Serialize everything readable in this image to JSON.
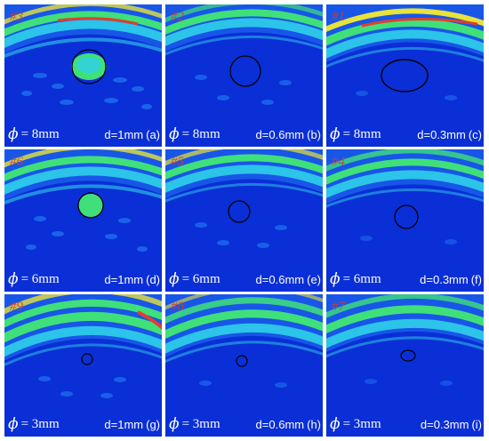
{
  "panels": [
    {
      "num": "#3",
      "phi": "ϕ",
      "diameter": "= 8mm",
      "depth": "d=1mm",
      "label": "(a)"
    },
    {
      "num": "#2",
      "phi": "ϕ",
      "diameter": "= 8mm",
      "depth": "d=0.6mm",
      "label": "(b)"
    },
    {
      "num": "#1",
      "phi": "ϕ",
      "diameter": "= 8mm",
      "depth": "d=0.3mm",
      "label": "(c)"
    },
    {
      "num": "#6",
      "phi": "ϕ",
      "diameter": "= 6mm",
      "depth": "d=1mm",
      "label": "(d)"
    },
    {
      "num": "#5",
      "phi": "ϕ",
      "diameter": "= 6mm",
      "depth": "d=0.6mm",
      "label": "(e)"
    },
    {
      "num": "#4",
      "phi": "ϕ",
      "diameter": "= 6mm",
      "depth": "d=0.3mm",
      "label": "(f)"
    },
    {
      "num": "#9",
      "phi": "ϕ",
      "diameter": "= 3mm",
      "depth": "d=1mm",
      "label": "(g)"
    },
    {
      "num": "#8",
      "phi": "ϕ",
      "diameter": "= 3mm",
      "depth": "d=0.6mm",
      "label": "(h)"
    },
    {
      "num": "#7",
      "phi": "ϕ",
      "diameter": "= 3mm",
      "depth": "d=0.3mm",
      "label": "(i)"
    }
  ],
  "colors": {
    "background_blue": "#0a2fd6",
    "band_cyan": "#2fd0e8",
    "band_green": "#3fe07a",
    "band_yellow": "#e8e23a",
    "band_red": "#e0402a",
    "defect_outline": "#000000",
    "caption_text": "#ffffff",
    "number_text": "#d43b2b"
  }
}
